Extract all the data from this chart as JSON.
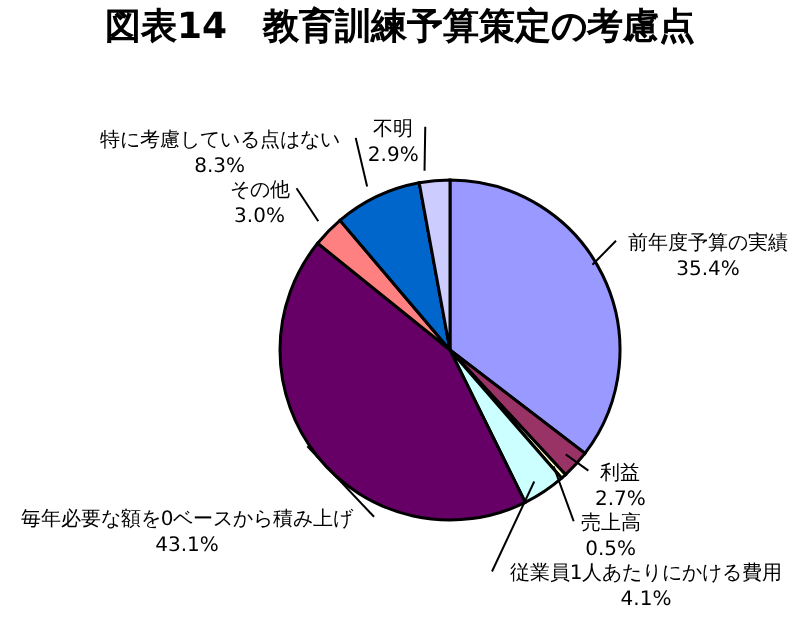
{
  "chart_data": {
    "type": "pie",
    "title": "図表14　教育訓練予算策定の考慮点",
    "categories": [
      "前年度予算の実績",
      "利益",
      "売上高",
      "従業員1人あたりにかける費用",
      "毎年必要な額を0ベースから積み上げ",
      "その他",
      "特に考慮している点はない",
      "不明"
    ],
    "values": [
      35.4,
      2.7,
      0.5,
      4.1,
      43.1,
      3.0,
      8.3,
      2.9
    ],
    "value_labels": [
      "35.4%",
      "2.7%",
      "0.5%",
      "4.1%",
      "43.1%",
      "3.0%",
      "8.3%",
      "2.9%"
    ],
    "colors": [
      "#9999ff",
      "#993366",
      "#ffffcc",
      "#ccffff",
      "#660066",
      "#ff8080",
      "#0066cc",
      "#ccccff"
    ]
  }
}
